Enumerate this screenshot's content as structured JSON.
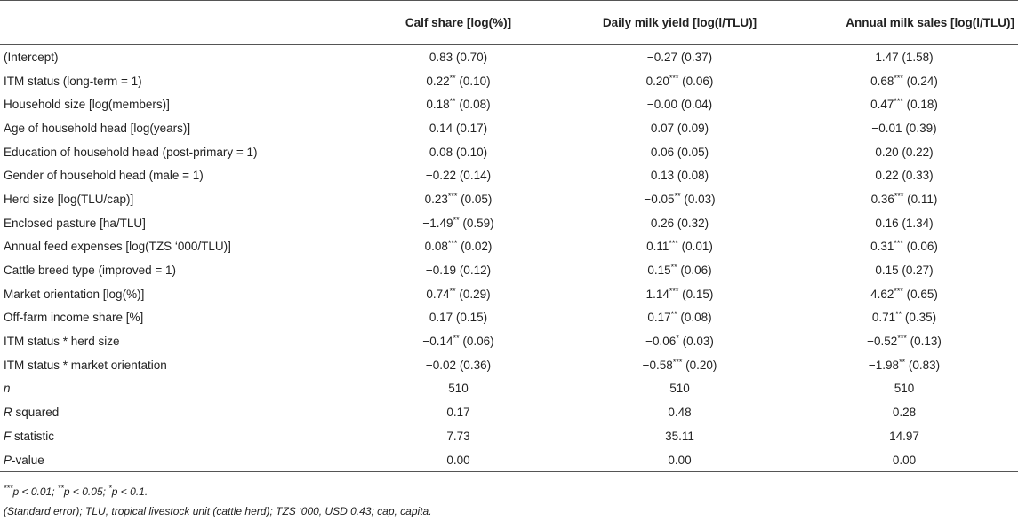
{
  "headers": [
    "",
    "Calf share [log(%)]",
    "Daily milk yield [log(l/TLU)]",
    "Annual milk sales [log(l/TLU)]"
  ],
  "rows": [
    {
      "label": "(Intercept)",
      "values": [
        [
          "0.83",
          "",
          " (0.70)"
        ],
        [
          "−0.27",
          "",
          " (0.37)"
        ],
        [
          "1.47",
          "",
          " (1.58)"
        ]
      ]
    },
    {
      "label": "ITM status (long-term = 1)",
      "values": [
        [
          "0.22",
          "**",
          " (0.10)"
        ],
        [
          "0.20",
          "***",
          " (0.06)"
        ],
        [
          "0.68",
          "***",
          " (0.24)"
        ]
      ]
    },
    {
      "label": "Household size [log(members)]",
      "values": [
        [
          "0.18",
          "**",
          " (0.08)"
        ],
        [
          "−0.00",
          "",
          " (0.04)"
        ],
        [
          "0.47",
          "***",
          " (0.18)"
        ]
      ]
    },
    {
      "label": "Age of household head [log(years)]",
      "values": [
        [
          "0.14",
          "",
          " (0.17)"
        ],
        [
          "0.07",
          "",
          " (0.09)"
        ],
        [
          "−0.01",
          "",
          " (0.39)"
        ]
      ]
    },
    {
      "label": "Education of household head (post-primary = 1)",
      "values": [
        [
          "0.08",
          "",
          " (0.10)"
        ],
        [
          "0.06",
          "",
          " (0.05)"
        ],
        [
          "0.20",
          "",
          " (0.22)"
        ]
      ]
    },
    {
      "label": "Gender of household head (male = 1)",
      "values": [
        [
          "−0.22",
          "",
          " (0.14)"
        ],
        [
          "0.13",
          "",
          " (0.08)"
        ],
        [
          "0.22",
          "",
          " (0.33)"
        ]
      ]
    },
    {
      "label": "Herd size [log(TLU/cap)]",
      "values": [
        [
          "0.23",
          "***",
          " (0.05)"
        ],
        [
          "−0.05",
          "**",
          " (0.03)"
        ],
        [
          "0.36",
          "***",
          " (0.11)"
        ]
      ]
    },
    {
      "label": "Enclosed pasture [ha/TLU]",
      "values": [
        [
          "−1.49",
          "**",
          " (0.59)"
        ],
        [
          "0.26",
          "",
          " (0.32)"
        ],
        [
          "0.16",
          "",
          " (1.34)"
        ]
      ]
    },
    {
      "label": "Annual feed expenses [log(TZS ‘000/TLU)]",
      "values": [
        [
          "0.08",
          "***",
          " (0.02)"
        ],
        [
          "0.11",
          "***",
          " (0.01)"
        ],
        [
          "0.31",
          "***",
          " (0.06)"
        ]
      ]
    },
    {
      "label": "Cattle breed type (improved = 1)",
      "values": [
        [
          "−0.19",
          "",
          " (0.12)"
        ],
        [
          "0.15",
          "**",
          " (0.06)"
        ],
        [
          "0.15",
          "",
          " (0.27)"
        ]
      ]
    },
    {
      "label": "Market orientation [log(%)]",
      "values": [
        [
          "0.74",
          "**",
          " (0.29)"
        ],
        [
          "1.14",
          "***",
          " (0.15)"
        ],
        [
          "4.62",
          "***",
          " (0.65)"
        ]
      ]
    },
    {
      "label": "Off-farm income share [%]",
      "values": [
        [
          "0.17",
          "",
          " (0.15)"
        ],
        [
          "0.17",
          "**",
          " (0.08)"
        ],
        [
          "0.71",
          "**",
          " (0.35)"
        ]
      ]
    },
    {
      "label": "ITM status * herd size",
      "values": [
        [
          "−0.14",
          "**",
          " (0.06)"
        ],
        [
          "−0.06",
          "*",
          " (0.03)"
        ],
        [
          "−0.52",
          "***",
          " (0.13)"
        ]
      ]
    },
    {
      "label": "ITM status * market orientation",
      "values": [
        [
          "−0.02",
          "",
          " (0.36)"
        ],
        [
          "−0.58",
          "***",
          " (0.20)"
        ],
        [
          "−1.98",
          "**",
          " (0.83)"
        ]
      ]
    }
  ],
  "stats": {
    "n": {
      "label_italic": "n",
      "label_rest": "",
      "values": [
        "510",
        "510",
        "510"
      ]
    },
    "r2": {
      "label_italic": "R",
      "label_rest": " squared",
      "values": [
        "0.17",
        "0.48",
        "0.28"
      ]
    },
    "f": {
      "label_italic": "F",
      "label_rest": " statistic",
      "values": [
        "7.73",
        "35.11",
        "14.97"
      ]
    },
    "p": {
      "label_italic": "P",
      "label_rest": "-value",
      "values": [
        "0.00",
        "0.00",
        "0.00"
      ]
    }
  },
  "notes": {
    "sig_1_stars": "***",
    "sig_1_text": "p < 0.01; ",
    "sig_2_stars": "**",
    "sig_2_text": "p < 0.05; ",
    "sig_3_stars": "*",
    "sig_3_text": "p < 0.1.",
    "line2": "(Standard error); TLU, tropical livestock unit (cattle herd); TZS ‘000, USD 0.43; cap, capita."
  }
}
